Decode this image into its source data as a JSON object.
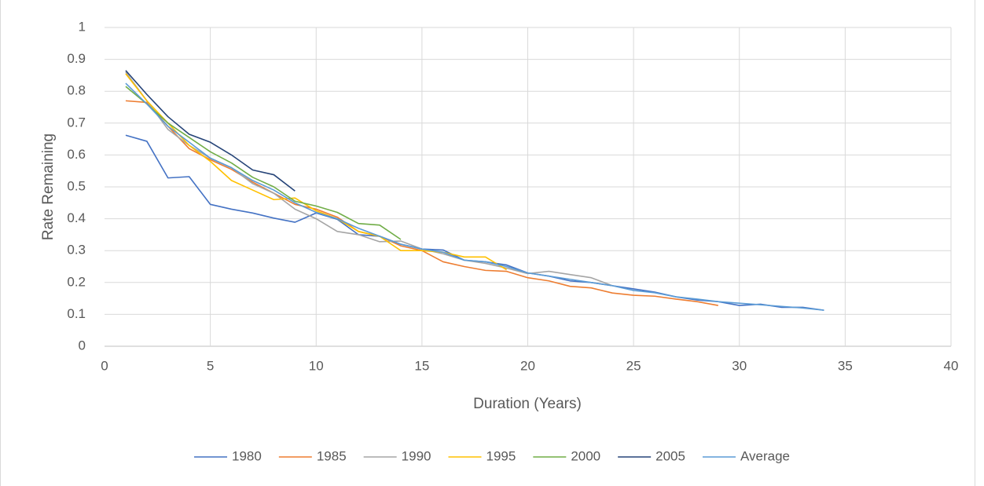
{
  "chart_data": {
    "type": "line",
    "x_label": "Duration (Years)",
    "y_label": "Rate Remaining",
    "x": [
      1,
      2,
      3,
      4,
      5,
      6,
      7,
      8,
      9,
      10,
      11,
      12,
      13,
      14,
      15,
      16,
      17,
      18,
      19,
      20,
      21,
      22,
      23,
      24,
      25,
      26,
      27,
      28,
      29,
      30,
      31,
      32,
      33,
      34
    ],
    "series": [
      {
        "name": "1980",
        "color": "#4472c4",
        "values": [
          0.662,
          0.643,
          0.528,
          0.532,
          0.445,
          0.43,
          0.418,
          0.402,
          0.389,
          0.418,
          0.398,
          0.35,
          0.345,
          0.32,
          0.305,
          0.302,
          0.27,
          0.265,
          0.255,
          0.23,
          0.22,
          0.205,
          0.2,
          0.19,
          0.18,
          0.17,
          0.155,
          0.145,
          0.14,
          0.128,
          0.132,
          0.122,
          0.122,
          0.113
        ]
      },
      {
        "name": "1985",
        "color": "#ed7d31",
        "values": [
          0.77,
          0.765,
          0.69,
          0.62,
          0.585,
          0.555,
          0.515,
          0.48,
          0.445,
          0.43,
          0.405,
          0.36,
          0.345,
          0.315,
          0.3,
          0.265,
          0.25,
          0.238,
          0.235,
          0.215,
          0.205,
          0.188,
          0.183,
          0.167,
          0.16,
          0.157,
          0.148,
          0.14,
          0.128,
          null,
          null,
          null,
          null,
          null
        ]
      },
      {
        "name": "1990",
        "color": "#a5a5a5",
        "values": [
          0.86,
          0.77,
          0.68,
          0.63,
          0.59,
          0.56,
          0.51,
          0.48,
          0.43,
          0.4,
          0.36,
          0.35,
          0.328,
          0.33,
          0.305,
          0.29,
          0.27,
          0.26,
          0.245,
          0.228,
          0.235,
          0.225,
          0.215,
          0.19,
          null,
          null,
          null,
          null,
          null,
          null,
          null,
          null,
          null,
          null
        ]
      },
      {
        "name": "1995",
        "color": "#ffc000",
        "values": [
          0.855,
          0.77,
          0.7,
          0.63,
          0.58,
          0.52,
          0.49,
          0.46,
          0.465,
          0.425,
          0.4,
          0.36,
          0.345,
          0.3,
          0.3,
          0.295,
          0.28,
          0.28,
          0.24,
          null,
          null,
          null,
          null,
          null,
          null,
          null,
          null,
          null,
          null,
          null,
          null,
          null,
          null,
          null
        ]
      },
      {
        "name": "2000",
        "color": "#70ad47",
        "values": [
          0.815,
          0.76,
          0.7,
          0.655,
          0.61,
          0.575,
          0.53,
          0.5,
          0.455,
          0.44,
          0.42,
          0.385,
          0.38,
          0.335,
          null,
          null,
          null,
          null,
          null,
          null,
          null,
          null,
          null,
          null,
          null,
          null,
          null,
          null,
          null,
          null,
          null,
          null,
          null,
          null
        ]
      },
      {
        "name": "2005",
        "color": "#264478",
        "values": [
          0.865,
          0.79,
          0.72,
          0.665,
          0.64,
          0.6,
          0.553,
          0.538,
          0.487,
          null,
          null,
          null,
          null,
          null,
          null,
          null,
          null,
          null,
          null,
          null,
          null,
          null,
          null,
          null,
          null,
          null,
          null,
          null,
          null,
          null,
          null,
          null,
          null,
          null
        ]
      },
      {
        "name": "Average",
        "color": "#5b9bd5",
        "values": [
          0.825,
          0.76,
          0.69,
          0.64,
          0.59,
          0.56,
          0.52,
          0.49,
          0.45,
          0.42,
          0.4,
          0.37,
          0.345,
          0.32,
          0.305,
          0.295,
          0.27,
          0.265,
          0.25,
          0.23,
          0.22,
          0.21,
          0.2,
          0.19,
          0.175,
          0.168,
          0.155,
          0.148,
          0.14,
          0.135,
          0.13,
          0.125,
          0.12,
          0.113
        ]
      }
    ],
    "xlim": [
      0,
      40
    ],
    "xticks": [
      0,
      5,
      10,
      15,
      20,
      25,
      30,
      35,
      40
    ],
    "ylim": [
      0,
      1
    ],
    "yticks": [
      0,
      0.1,
      0.2,
      0.3,
      0.4,
      0.5,
      0.6,
      0.7,
      0.8,
      0.9,
      1
    ],
    "grid": true,
    "legend": "bottom"
  }
}
